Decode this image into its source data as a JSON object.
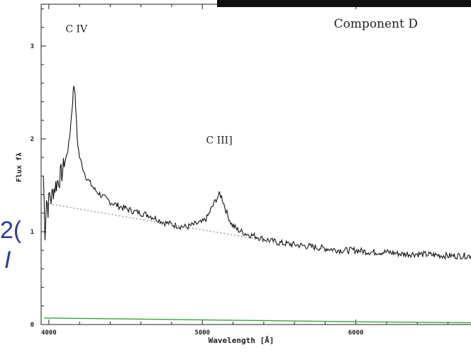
{
  "background_fragments": {
    "top": "2(",
    "bottom": "I"
  },
  "chart_data": {
    "type": "line",
    "title": "",
    "xlabel": "Wavelength [Å]",
    "ylabel": "Flux  fλ",
    "xlim": [
      3950,
      6750
    ],
    "ylim": [
      0,
      3.45
    ],
    "x_ticks": [
      4000,
      5000,
      6000
    ],
    "y_ticks": [
      0,
      1,
      2,
      3
    ],
    "grid": false,
    "annotations": [
      {
        "text": "C  IV",
        "x": 4180,
        "y": 3.15
      },
      {
        "text": "C  III]",
        "x": 5110,
        "y": 1.95
      },
      {
        "text": "Component  D",
        "x": 6130,
        "y": 3.2
      }
    ],
    "series": [
      {
        "style": "solid",
        "color": "#111111",
        "x": [
          3965,
          3975,
          3985,
          3995,
          4005,
          4015,
          4030,
          4045,
          4060,
          4075,
          4090,
          4105,
          4120,
          4135,
          4145,
          4155,
          4162,
          4168,
          4175,
          4185,
          4200,
          4220,
          4240,
          4270,
          4300,
          4350,
          4400,
          4450,
          4500,
          4550,
          4600,
          4650,
          4700,
          4750,
          4800,
          4850,
          4900,
          4950,
          5000,
          5030,
          5060,
          5090,
          5110,
          5125,
          5140,
          5160,
          5190,
          5230,
          5280,
          5350,
          5400,
          5450,
          5500,
          5600,
          5700,
          5800,
          5900,
          6000,
          6100,
          6200,
          6300,
          6400,
          6500,
          6600,
          6700,
          6750
        ],
        "y": [
          1.6,
          1.0,
          1.35,
          1.25,
          1.4,
          1.35,
          1.45,
          1.5,
          1.55,
          1.6,
          1.65,
          1.75,
          1.85,
          2.0,
          2.2,
          2.4,
          2.58,
          2.55,
          2.35,
          2.0,
          1.8,
          1.7,
          1.6,
          1.52,
          1.45,
          1.38,
          1.32,
          1.28,
          1.25,
          1.22,
          1.2,
          1.18,
          1.14,
          1.1,
          1.08,
          1.06,
          1.05,
          1.08,
          1.1,
          1.15,
          1.25,
          1.35,
          1.4,
          1.38,
          1.3,
          1.2,
          1.08,
          1.02,
          0.98,
          0.95,
          0.92,
          0.9,
          0.88,
          0.86,
          0.84,
          0.82,
          0.8,
          0.8,
          0.78,
          0.78,
          0.76,
          0.76,
          0.75,
          0.74,
          0.74,
          0.74
        ]
      },
      {
        "style": "dotted",
        "color": "#9a9a9a",
        "x": [
          4000,
          5500
        ],
        "y": [
          1.3,
          0.88
        ]
      },
      {
        "style": "solid",
        "color": "#3aa33a",
        "x": [
          3970,
          4500,
          5000,
          6000,
          6750
        ],
        "y": [
          0.07,
          0.06,
          0.05,
          0.03,
          0.02
        ]
      }
    ]
  }
}
